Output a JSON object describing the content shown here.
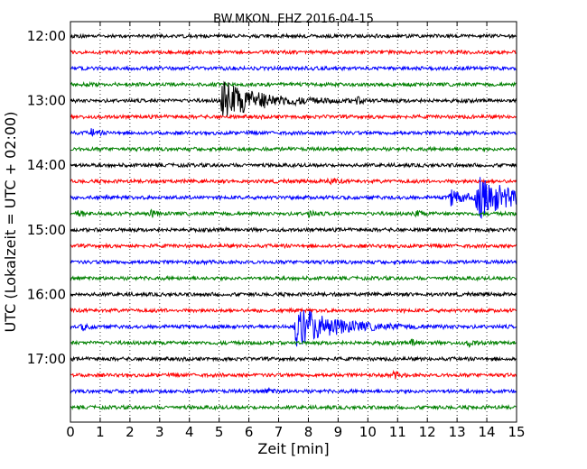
{
  "chart_data": {
    "type": "line",
    "title": "BW.MKON..EHZ 2016-04-15",
    "xlabel": "Zeit  [min]",
    "ylabel": "UTC (Lokalzeit = UTC + 02:00)",
    "xlim": [
      0,
      15
    ],
    "x_ticks": [
      "0",
      "1",
      "2",
      "3",
      "4",
      "5",
      "6",
      "7",
      "8",
      "9",
      "10",
      "11",
      "12",
      "13",
      "14",
      "15"
    ],
    "y_ticks": [
      "12:00",
      "13:00",
      "14:00",
      "15:00",
      "16:00",
      "17:00"
    ],
    "grid": true,
    "trace_interval_min": 15,
    "trace_colors": [
      "#000000",
      "#ff0000",
      "#0000ff",
      "#008000"
    ],
    "traces_start": "12:00",
    "trace_count": 24,
    "events": [
      {
        "trace": "13:00",
        "minute": 5.1,
        "amplitude": "large",
        "color": "#000000"
      },
      {
        "trace": "13:00",
        "minute": 9.6,
        "amplitude": "small",
        "color": "#000000"
      },
      {
        "trace": "13:30",
        "minute": 0.7,
        "amplitude": "small",
        "color": "#0000ff"
      },
      {
        "trace": "14:15",
        "minute": 8.7,
        "amplitude": "small",
        "color": "#ff0000"
      },
      {
        "trace": "14:30",
        "minute": 12.8,
        "amplitude": "medium",
        "color": "#0000ff"
      },
      {
        "trace": "14:30",
        "minute": 13.7,
        "amplitude": "large",
        "color": "#0000ff"
      },
      {
        "trace": "14:45",
        "minute": 0.3,
        "amplitude": "small",
        "color": "#008000"
      },
      {
        "trace": "14:45",
        "minute": 2.7,
        "amplitude": "small",
        "color": "#008000"
      },
      {
        "trace": "14:45",
        "minute": 8.0,
        "amplitude": "small",
        "color": "#008000"
      },
      {
        "trace": "14:45",
        "minute": 11.6,
        "amplitude": "small",
        "color": "#008000"
      },
      {
        "trace": "16:30",
        "minute": 0.4,
        "amplitude": "small",
        "color": "#0000ff"
      },
      {
        "trace": "16:30",
        "minute": 7.6,
        "amplitude": "large",
        "color": "#0000ff"
      },
      {
        "trace": "16:45",
        "minute": 11.5,
        "amplitude": "small",
        "color": "#008000"
      },
      {
        "trace": "16:45",
        "minute": 13.4,
        "amplitude": "small",
        "color": "#008000"
      },
      {
        "trace": "17:15",
        "minute": 10.9,
        "amplitude": "small",
        "color": "#ff0000"
      },
      {
        "trace": "17:30",
        "minute": 6.6,
        "amplitude": "small",
        "color": "#0000ff"
      }
    ]
  }
}
